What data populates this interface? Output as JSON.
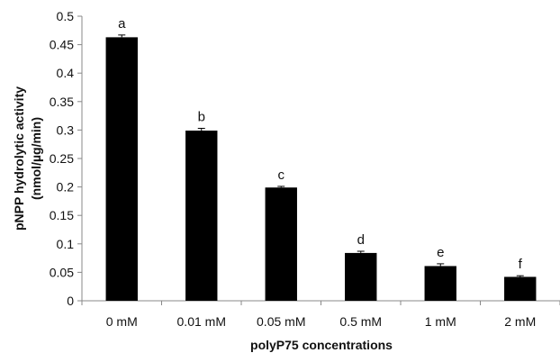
{
  "chart_data": {
    "type": "bar",
    "title": "",
    "xlabel": "polyP75 concentrations",
    "ylabel_line1": "pNPP hydrolytic activity",
    "ylabel_line2": "(nmol/µg/min)",
    "categories": [
      "0 mM",
      "0.01 mM",
      "0.05 mM",
      "0.5 mM",
      "1 mM",
      "2 mM"
    ],
    "values": [
      0.463,
      0.299,
      0.199,
      0.084,
      0.061,
      0.042
    ],
    "errors": [
      0.004,
      0.004,
      0.002,
      0.003,
      0.004,
      0.002
    ],
    "significance_labels": [
      "a",
      "b",
      "c",
      "d",
      "e",
      "f"
    ],
    "ylim": [
      0,
      0.5
    ],
    "yticks": [
      0,
      0.05,
      0.1,
      0.15,
      0.2,
      0.25,
      0.3,
      0.35,
      0.4,
      0.45,
      0.5
    ],
    "ytick_labels": [
      "0",
      "0.05",
      "0.1",
      "0.15",
      "0.2",
      "0.25",
      "0.3",
      "0.35",
      "0.4",
      "0.45",
      "0.5"
    ],
    "grid": false,
    "legend": "none",
    "bar_color": "#000000"
  }
}
